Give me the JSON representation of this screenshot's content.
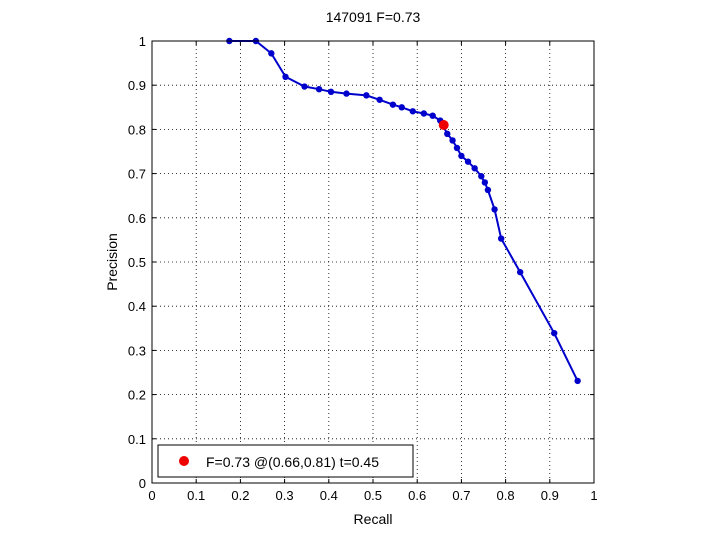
{
  "chart_data": {
    "type": "line",
    "title": "147091 F=0.73",
    "xlabel": "Recall",
    "ylabel": "Precision",
    "xlim": [
      0,
      1
    ],
    "ylim": [
      0,
      1
    ],
    "xticks": [
      "0",
      "0.1",
      "0.2",
      "0.3",
      "0.4",
      "0.5",
      "0.6",
      "0.7",
      "0.8",
      "0.9",
      "1"
    ],
    "yticks": [
      "0",
      "0.1",
      "0.2",
      "0.3",
      "0.4",
      "0.5",
      "0.6",
      "0.7",
      "0.8",
      "0.9",
      "1"
    ],
    "grid": true,
    "legend_position": "bottom-left",
    "series": [
      {
        "color": "#0000cc",
        "x": [
          0.175,
          0.235,
          0.27,
          0.302,
          0.345,
          0.378,
          0.405,
          0.44,
          0.485,
          0.515,
          0.545,
          0.565,
          0.59,
          0.615,
          0.635,
          0.652,
          0.668,
          0.68,
          0.69,
          0.7,
          0.715,
          0.73,
          0.745,
          0.753,
          0.76,
          0.775,
          0.79,
          0.833,
          0.91,
          0.963
        ],
        "y": [
          1.0,
          1.0,
          0.972,
          0.919,
          0.897,
          0.891,
          0.885,
          0.881,
          0.877,
          0.867,
          0.856,
          0.85,
          0.841,
          0.836,
          0.831,
          0.82,
          0.79,
          0.775,
          0.758,
          0.74,
          0.727,
          0.712,
          0.694,
          0.68,
          0.663,
          0.619,
          0.553,
          0.477,
          0.339,
          0.231
        ]
      }
    ],
    "highlight": {
      "x": 0.66,
      "y": 0.81,
      "color": "#ee0000",
      "label": "F=0.73 @(0.66,0.81) t=0.45"
    }
  }
}
